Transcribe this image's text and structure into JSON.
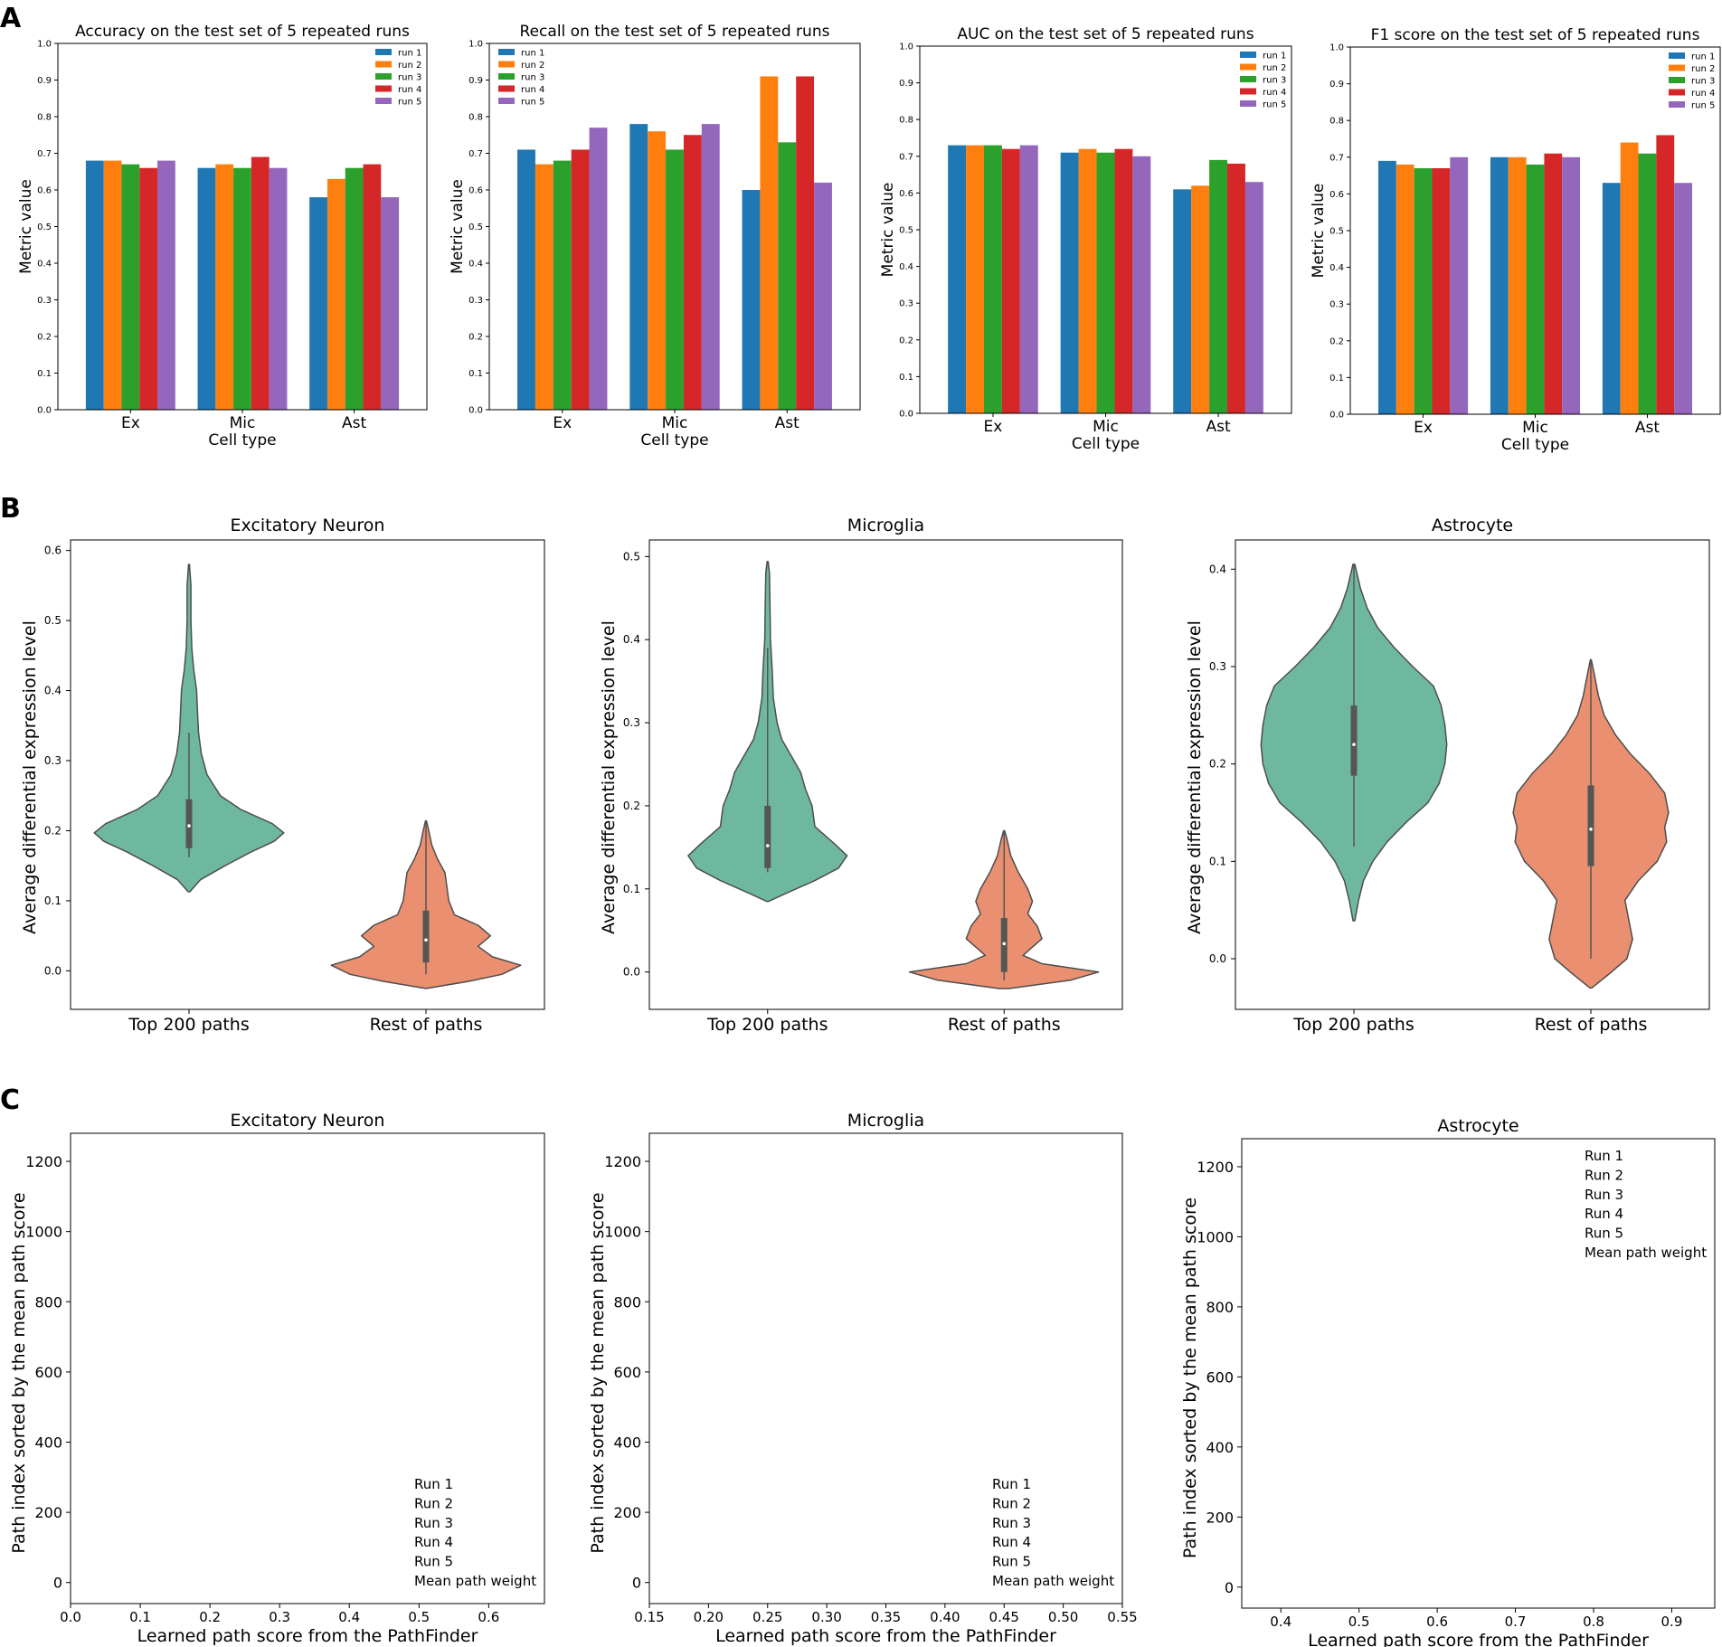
{
  "panels": {
    "A": "A",
    "B": "B",
    "C": "C"
  },
  "colors": {
    "run1": "#1f77b4",
    "run2": "#ff7f0e",
    "run3": "#2ca02c",
    "run4": "#d62728",
    "run5": "#9467bd",
    "top": "#6fb8a0",
    "rest": "#ea9070",
    "inner": "#555555"
  },
  "chart_data": [
    {
      "id": "acc",
      "type": "bar",
      "title": "Accuracy on the test set of 5 repeated runs",
      "xlabel": "Cell type",
      "ylabel": "Metric value",
      "categories": [
        "Ex",
        "Mic",
        "Ast"
      ],
      "ylim": [
        0,
        1.0
      ],
      "yticks": [
        "0.0",
        "0.1",
        "0.2",
        "0.3",
        "0.4",
        "0.5",
        "0.6",
        "0.7",
        "0.8",
        "0.9",
        "1.0"
      ],
      "legend_position": "upper right",
      "series": [
        {
          "name": "run 1",
          "values": [
            0.68,
            0.66,
            0.58
          ]
        },
        {
          "name": "run 2",
          "values": [
            0.68,
            0.67,
            0.63
          ]
        },
        {
          "name": "run 3",
          "values": [
            0.67,
            0.66,
            0.66
          ]
        },
        {
          "name": "run 4",
          "values": [
            0.66,
            0.69,
            0.67
          ]
        },
        {
          "name": "run 5",
          "values": [
            0.68,
            0.66,
            0.58
          ]
        }
      ]
    },
    {
      "id": "rec",
      "type": "bar",
      "title": "Recall on the test set of 5 repeated runs",
      "xlabel": "Cell type",
      "ylabel": "Metric value",
      "categories": [
        "Ex",
        "Mic",
        "Ast"
      ],
      "ylim": [
        0,
        1.0
      ],
      "yticks": [
        "0.0",
        "0.1",
        "0.2",
        "0.3",
        "0.4",
        "0.5",
        "0.6",
        "0.7",
        "0.8",
        "0.9",
        "1.0"
      ],
      "legend_position": "upper left",
      "series": [
        {
          "name": "run 1",
          "values": [
            0.71,
            0.78,
            0.6
          ]
        },
        {
          "name": "run 2",
          "values": [
            0.67,
            0.76,
            0.91
          ]
        },
        {
          "name": "run 3",
          "values": [
            0.68,
            0.71,
            0.73
          ]
        },
        {
          "name": "run 4",
          "values": [
            0.71,
            0.75,
            0.91
          ]
        },
        {
          "name": "run 5",
          "values": [
            0.77,
            0.78,
            0.62
          ]
        }
      ]
    },
    {
      "id": "auc",
      "type": "bar",
      "title": "AUC on the test set of 5 repeated runs",
      "xlabel": "Cell type",
      "ylabel": "Metric value",
      "categories": [
        "Ex",
        "Mic",
        "Ast"
      ],
      "ylim": [
        0,
        1.0
      ],
      "yticks": [
        "0.0",
        "0.1",
        "0.2",
        "0.3",
        "0.4",
        "0.5",
        "0.6",
        "0.7",
        "0.8",
        "0.9",
        "1.0"
      ],
      "legend_position": "upper right",
      "series": [
        {
          "name": "run 1",
          "values": [
            0.73,
            0.71,
            0.61
          ]
        },
        {
          "name": "run 2",
          "values": [
            0.73,
            0.72,
            0.62
          ]
        },
        {
          "name": "run 3",
          "values": [
            0.73,
            0.71,
            0.69
          ]
        },
        {
          "name": "run 4",
          "values": [
            0.72,
            0.72,
            0.68
          ]
        },
        {
          "name": "run 5",
          "values": [
            0.73,
            0.7,
            0.63
          ]
        }
      ]
    },
    {
      "id": "f1",
      "type": "bar",
      "title": "F1 score on the test set of 5 repeated runs",
      "xlabel": "Cell type",
      "ylabel": "Metric value",
      "categories": [
        "Ex",
        "Mic",
        "Ast"
      ],
      "ylim": [
        0,
        1.0
      ],
      "yticks": [
        "0.0",
        "0.1",
        "0.2",
        "0.3",
        "0.4",
        "0.5",
        "0.6",
        "0.7",
        "0.8",
        "0.9",
        "1.0"
      ],
      "legend_position": "upper right",
      "series": [
        {
          "name": "run 1",
          "values": [
            0.69,
            0.7,
            0.63
          ]
        },
        {
          "name": "run 2",
          "values": [
            0.68,
            0.7,
            0.74
          ]
        },
        {
          "name": "run 3",
          "values": [
            0.67,
            0.68,
            0.71
          ]
        },
        {
          "name": "run 4",
          "values": [
            0.67,
            0.71,
            0.76
          ]
        },
        {
          "name": "run 5",
          "values": [
            0.7,
            0.7,
            0.63
          ]
        }
      ]
    },
    {
      "id": "vex",
      "type": "violin",
      "title": "Excitatory Neuron",
      "ylabel": "Average differential expression level",
      "categories": [
        "Top 200 paths",
        "Rest of paths"
      ],
      "ylim": [
        -0.055,
        0.615
      ],
      "yticks": [
        "0.0",
        "0.1",
        "0.2",
        "0.3",
        "0.4",
        "0.5",
        "0.6"
      ],
      "violins": [
        {
          "min": 0.113,
          "q1": 0.175,
          "median": 0.207,
          "q3": 0.245,
          "max": 0.58,
          "whisker_low": 0.162,
          "whisker_high": 0.34,
          "halfwidth": [
            [
              0.113,
              0.01
            ],
            [
              0.13,
              0.12
            ],
            [
              0.15,
              0.38
            ],
            [
              0.17,
              0.66
            ],
            [
              0.185,
              0.9
            ],
            [
              0.197,
              1.0
            ],
            [
              0.21,
              0.88
            ],
            [
              0.23,
              0.55
            ],
            [
              0.25,
              0.33
            ],
            [
              0.28,
              0.19
            ],
            [
              0.31,
              0.13
            ],
            [
              0.34,
              0.1
            ],
            [
              0.37,
              0.09
            ],
            [
              0.4,
              0.08
            ],
            [
              0.43,
              0.05
            ],
            [
              0.46,
              0.03
            ],
            [
              0.5,
              0.02
            ],
            [
              0.55,
              0.02
            ],
            [
              0.58,
              0.005
            ]
          ]
        },
        {
          "min": -0.025,
          "q1": 0.012,
          "median": 0.044,
          "q3": 0.086,
          "max": 0.214,
          "whisker_low": -0.005,
          "whisker_high": 0.214,
          "halfwidth": [
            [
              -0.025,
              0.01
            ],
            [
              -0.015,
              0.45
            ],
            [
              -0.005,
              0.8
            ],
            [
              0.008,
              1.0
            ],
            [
              0.02,
              0.7
            ],
            [
              0.035,
              0.55
            ],
            [
              0.05,
              0.68
            ],
            [
              0.065,
              0.55
            ],
            [
              0.08,
              0.3
            ],
            [
              0.1,
              0.24
            ],
            [
              0.12,
              0.22
            ],
            [
              0.14,
              0.2
            ],
            [
              0.16,
              0.12
            ],
            [
              0.18,
              0.06
            ],
            [
              0.2,
              0.03
            ],
            [
              0.214,
              0.005
            ]
          ]
        }
      ]
    },
    {
      "id": "vmic",
      "type": "violin",
      "title": "Microglia",
      "ylabel": "Average differential expression level",
      "categories": [
        "Top 200 paths",
        "Rest of paths"
      ],
      "ylim": [
        -0.045,
        0.52
      ],
      "yticks": [
        "0.0",
        "0.1",
        "0.2",
        "0.3",
        "0.4",
        "0.5"
      ],
      "violins": [
        {
          "min": 0.085,
          "q1": 0.125,
          "median": 0.152,
          "q3": 0.2,
          "max": 0.494,
          "whisker_low": 0.12,
          "whisker_high": 0.39,
          "halfwidth": [
            [
              0.085,
              0.01
            ],
            [
              0.095,
              0.2
            ],
            [
              0.11,
              0.5
            ],
            [
              0.125,
              0.75
            ],
            [
              0.14,
              0.84
            ],
            [
              0.155,
              0.7
            ],
            [
              0.175,
              0.5
            ],
            [
              0.2,
              0.47
            ],
            [
              0.22,
              0.4
            ],
            [
              0.24,
              0.35
            ],
            [
              0.26,
              0.25
            ],
            [
              0.28,
              0.15
            ],
            [
              0.3,
              0.1
            ],
            [
              0.33,
              0.06
            ],
            [
              0.36,
              0.05
            ],
            [
              0.4,
              0.03
            ],
            [
              0.44,
              0.025
            ],
            [
              0.48,
              0.02
            ],
            [
              0.494,
              0.005
            ]
          ]
        },
        {
          "min": -0.02,
          "q1": 0.0,
          "median": 0.034,
          "q3": 0.065,
          "max": 0.17,
          "whisker_low": -0.01,
          "whisker_high": 0.17,
          "halfwidth": [
            [
              -0.02,
              0.05
            ],
            [
              -0.01,
              0.7
            ],
            [
              0.0,
              1.0
            ],
            [
              0.01,
              0.4
            ],
            [
              0.02,
              0.2
            ],
            [
              0.03,
              0.3
            ],
            [
              0.04,
              0.4
            ],
            [
              0.055,
              0.35
            ],
            [
              0.07,
              0.25
            ],
            [
              0.085,
              0.3
            ],
            [
              0.1,
              0.25
            ],
            [
              0.12,
              0.15
            ],
            [
              0.14,
              0.07
            ],
            [
              0.16,
              0.03
            ],
            [
              0.17,
              0.005
            ]
          ]
        }
      ]
    },
    {
      "id": "vast",
      "type": "violin",
      "title": "Astrocyte",
      "ylabel": "Average differential expression level",
      "categories": [
        "Top 200 paths",
        "Rest of paths"
      ],
      "ylim": [
        -0.052,
        0.43
      ],
      "yticks": [
        "0.0",
        "0.1",
        "0.2",
        "0.3",
        "0.4"
      ],
      "violins": [
        {
          "min": 0.039,
          "q1": 0.188,
          "median": 0.22,
          "q3": 0.26,
          "max": 0.405,
          "whisker_low": 0.115,
          "whisker_high": 0.405,
          "halfwidth": [
            [
              0.039,
              0.01
            ],
            [
              0.06,
              0.05
            ],
            [
              0.08,
              0.1
            ],
            [
              0.1,
              0.2
            ],
            [
              0.12,
              0.35
            ],
            [
              0.14,
              0.55
            ],
            [
              0.16,
              0.78
            ],
            [
              0.18,
              0.9
            ],
            [
              0.2,
              0.96
            ],
            [
              0.22,
              0.98
            ],
            [
              0.24,
              0.96
            ],
            [
              0.26,
              0.92
            ],
            [
              0.28,
              0.84
            ],
            [
              0.3,
              0.62
            ],
            [
              0.32,
              0.42
            ],
            [
              0.34,
              0.25
            ],
            [
              0.36,
              0.14
            ],
            [
              0.38,
              0.07
            ],
            [
              0.405,
              0.01
            ]
          ]
        },
        {
          "min": -0.03,
          "q1": 0.095,
          "median": 0.133,
          "q3": 0.178,
          "max": 0.307,
          "whisker_low": 0.0,
          "whisker_high": 0.307,
          "halfwidth": [
            [
              -0.03,
              0.01
            ],
            [
              -0.015,
              0.2
            ],
            [
              0.0,
              0.38
            ],
            [
              0.02,
              0.44
            ],
            [
              0.04,
              0.4
            ],
            [
              0.06,
              0.36
            ],
            [
              0.08,
              0.5
            ],
            [
              0.1,
              0.7
            ],
            [
              0.12,
              0.8
            ],
            [
              0.135,
              0.78
            ],
            [
              0.15,
              0.82
            ],
            [
              0.17,
              0.78
            ],
            [
              0.19,
              0.62
            ],
            [
              0.21,
              0.42
            ],
            [
              0.23,
              0.26
            ],
            [
              0.25,
              0.14
            ],
            [
              0.27,
              0.08
            ],
            [
              0.29,
              0.04
            ],
            [
              0.307,
              0.005
            ]
          ]
        }
      ]
    },
    {
      "id": "cex",
      "type": "scatter",
      "title": "Excitatory Neuron",
      "xlabel": "Learned path score from the PathFinder",
      "ylabel": "Path index sorted by the mean path score",
      "xlim": [
        0.0,
        0.68
      ],
      "ylim": [
        -60,
        1280
      ],
      "xticks": [
        "0.0",
        "0.1",
        "0.2",
        "0.3",
        "0.4",
        "0.5",
        "0.6"
      ],
      "yticks": [
        "0",
        "200",
        "400",
        "600",
        "800",
        "1000",
        "1200"
      ],
      "legend": [
        "Run 1",
        "Run 2",
        "Run 3",
        "Run 4",
        "Run 5",
        "Mean path weight"
      ],
      "legend_position": "lower right"
    },
    {
      "id": "cmic",
      "type": "scatter",
      "title": "Microglia",
      "xlabel": "Learned path score from the PathFinder",
      "ylabel": "Path index sorted by the mean path score",
      "xlim": [
        0.15,
        0.55
      ],
      "ylim": [
        -60,
        1280
      ],
      "xticks": [
        "0.15",
        "0.20",
        "0.25",
        "0.30",
        "0.35",
        "0.40",
        "0.45",
        "0.50",
        "0.55"
      ],
      "yticks": [
        "0",
        "200",
        "400",
        "600",
        "800",
        "1000",
        "1200"
      ],
      "legend": [
        "Run 1",
        "Run 2",
        "Run 3",
        "Run 4",
        "Run 5",
        "Mean path weight"
      ],
      "legend_position": "lower right"
    },
    {
      "id": "cast",
      "type": "scatter",
      "title": "Astrocyte",
      "xlabel": "Learned path score from the PathFinder",
      "ylabel": "Path index sorted by the mean path score",
      "xlim": [
        0.35,
        0.955
      ],
      "ylim": [
        -60,
        1280
      ],
      "xticks": [
        "0.4",
        "0.5",
        "0.6",
        "0.7",
        "0.8",
        "0.9"
      ],
      "yticks": [
        "0",
        "200",
        "400",
        "600",
        "800",
        "1000",
        "1200"
      ],
      "legend": [
        "Run 1",
        "Run 2",
        "Run 3",
        "Run 4",
        "Run 5",
        "Mean path weight"
      ],
      "legend_position": "upper right"
    }
  ]
}
